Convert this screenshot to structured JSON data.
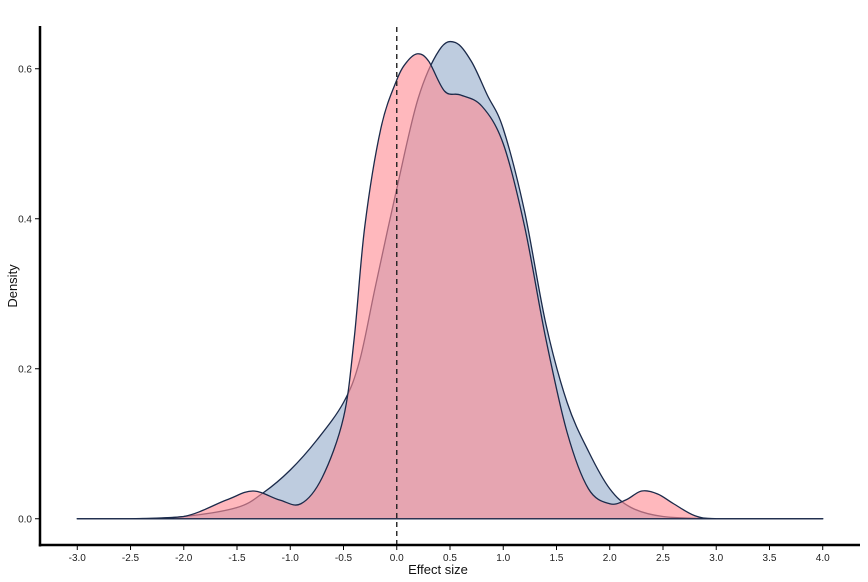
{
  "chart_data": {
    "type": "area",
    "title": "",
    "xlabel": "Effect size",
    "ylabel": "Density",
    "xlim": [
      -3.35,
      4.35
    ],
    "ylim": [
      -0.035,
      0.665
    ],
    "x_ticks": [
      -3.0,
      -2.5,
      -2.0,
      -1.5,
      -1.0,
      -0.5,
      0.0,
      0.5,
      1.0,
      1.5,
      2.0,
      2.5,
      3.0,
      3.5,
      4.0
    ],
    "x_tick_labels": [
      "-3.0",
      "-2.5",
      "-2.0",
      "-1.5",
      "-1.0",
      "-0.5",
      "0.0",
      "0.5",
      "1.0",
      "1.5",
      "2.0",
      "2.5",
      "3.0",
      "3.5",
      "4.0"
    ],
    "y_ticks": [
      0.0,
      0.2,
      0.4,
      0.6
    ],
    "y_tick_labels": [
      "0.0",
      "0.2",
      "0.4",
      "0.6"
    ],
    "grid": false,
    "legend": "none",
    "reference_line": {
      "x": 0.0,
      "style": "dashed"
    },
    "outline_color": "#1b2a4a",
    "series": [
      {
        "fill": "#b3c3d9",
        "x": [
          -3.0,
          -2.5,
          -2.0,
          -1.5,
          -1.25,
          -1.0,
          -0.75,
          -0.5,
          -0.35,
          -0.2,
          0.0,
          0.2,
          0.4,
          0.55,
          0.7,
          0.85,
          1.0,
          1.2,
          1.4,
          1.6,
          1.8,
          2.0,
          2.2,
          2.5,
          3.0,
          3.5,
          4.0
        ],
        "y": [
          0.0,
          0.0,
          0.003,
          0.015,
          0.035,
          0.065,
          0.105,
          0.155,
          0.21,
          0.31,
          0.44,
          0.56,
          0.625,
          0.635,
          0.61,
          0.565,
          0.52,
          0.41,
          0.26,
          0.155,
          0.09,
          0.04,
          0.015,
          0.003,
          0.0,
          0.0,
          0.0
        ]
      },
      {
        "fill": "#ff8c94",
        "x": [
          -3.0,
          -2.5,
          -2.0,
          -1.6,
          -1.35,
          -1.1,
          -0.9,
          -0.7,
          -0.5,
          -0.4,
          -0.3,
          -0.15,
          0.0,
          0.1,
          0.2,
          0.3,
          0.45,
          0.6,
          0.8,
          1.0,
          1.2,
          1.4,
          1.6,
          1.8,
          2.0,
          2.15,
          2.3,
          2.45,
          2.6,
          2.8,
          3.0,
          3.5,
          4.0
        ],
        "y": [
          0.0,
          0.0,
          0.003,
          0.025,
          0.037,
          0.025,
          0.02,
          0.055,
          0.135,
          0.24,
          0.39,
          0.52,
          0.585,
          0.61,
          0.62,
          0.61,
          0.57,
          0.565,
          0.55,
          0.5,
          0.39,
          0.24,
          0.115,
          0.04,
          0.02,
          0.025,
          0.037,
          0.033,
          0.02,
          0.004,
          0.0,
          0.0,
          0.0
        ]
      }
    ]
  }
}
